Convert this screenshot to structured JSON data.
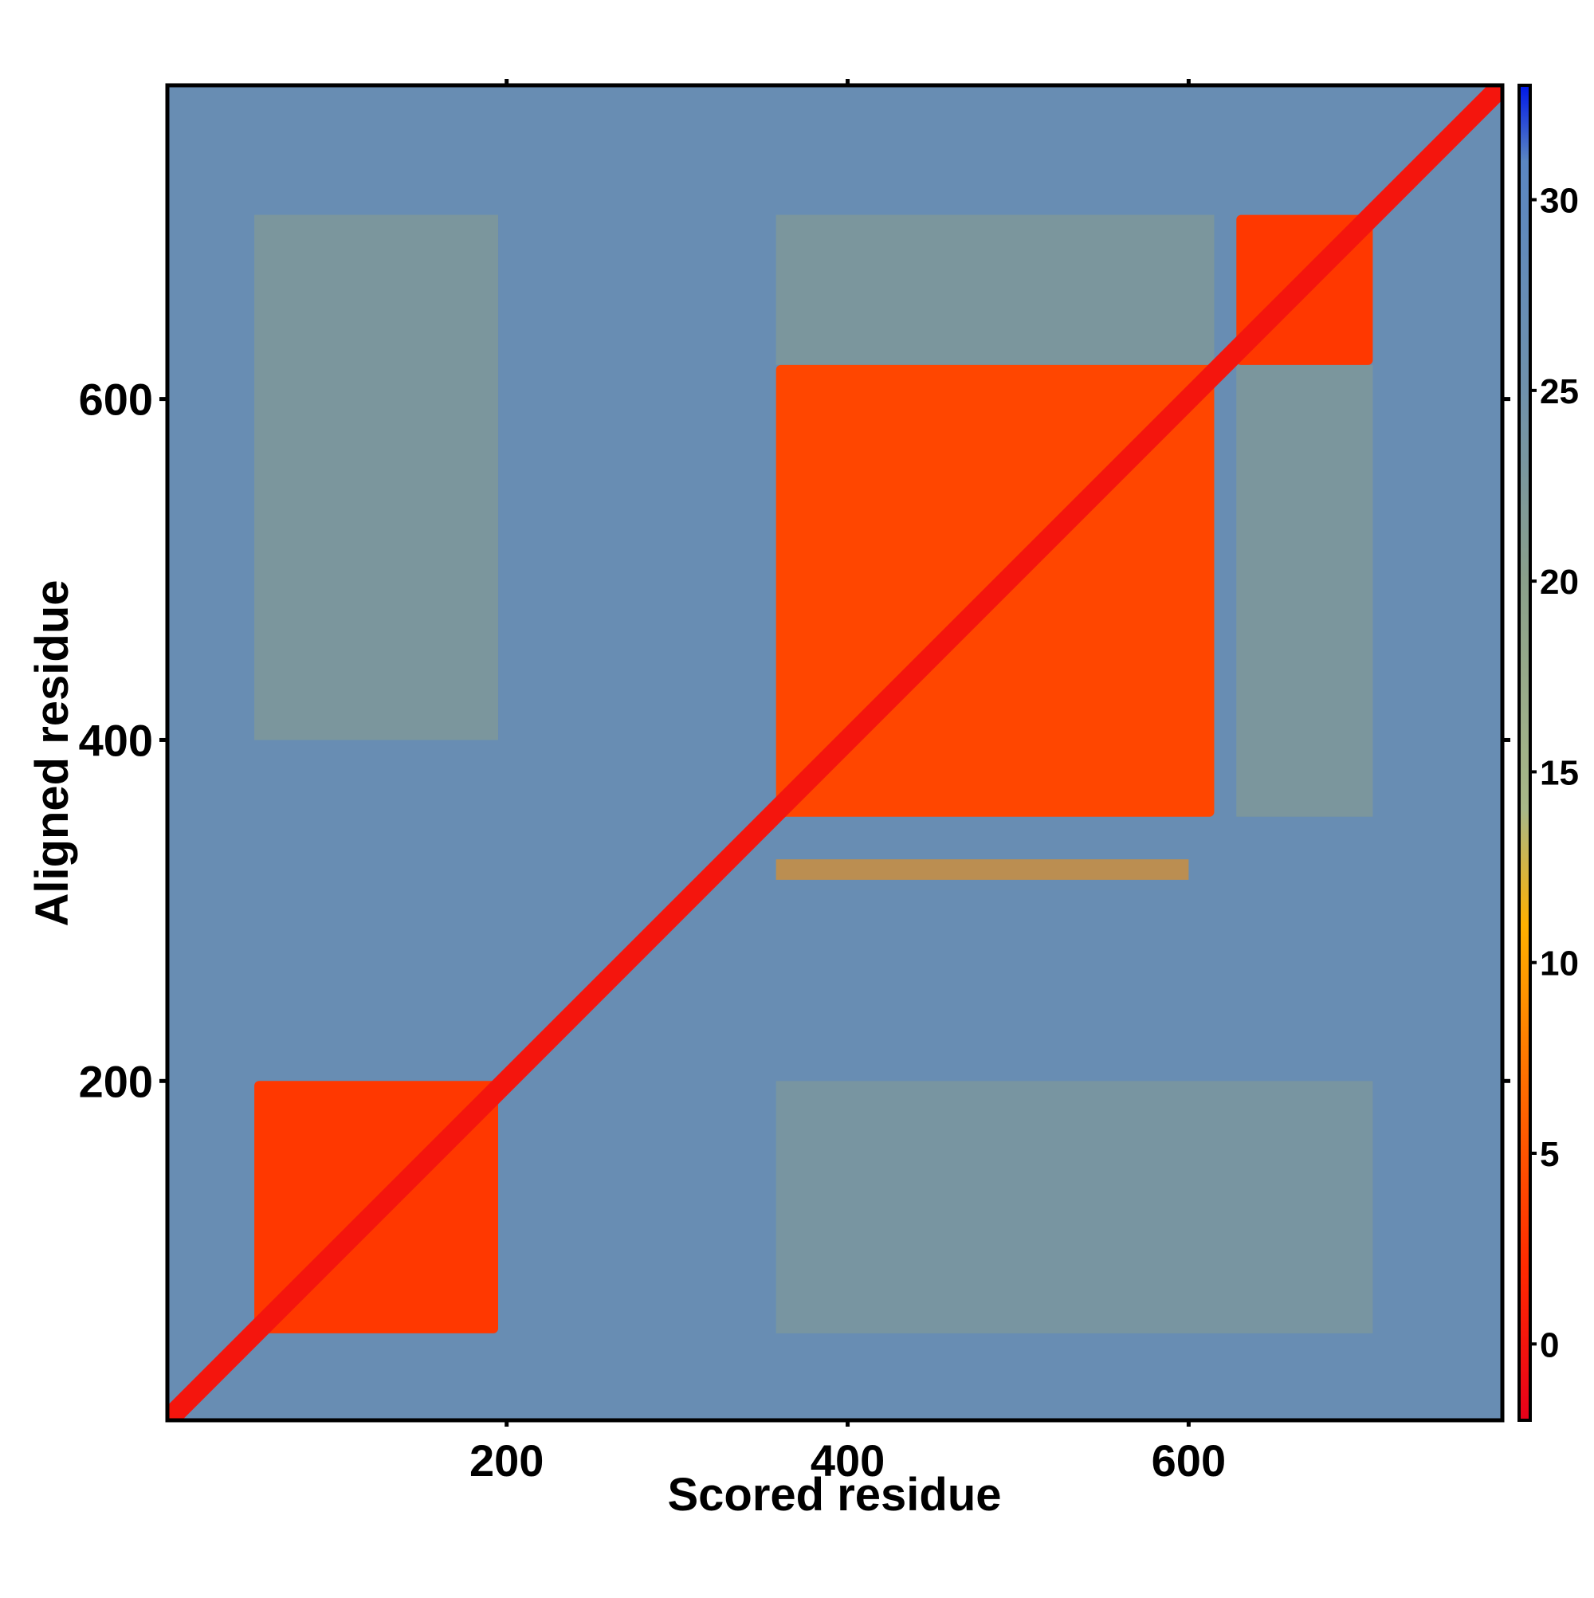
{
  "chart_data": {
    "type": "heatmap",
    "title": "",
    "xlabel": "Scored residue",
    "ylabel": "Aligned residue",
    "xlim": [
      1,
      784
    ],
    "ylim": [
      1,
      784
    ],
    "x_ticks": [
      "200",
      "400",
      "600"
    ],
    "y_ticks": [
      "200",
      "400",
      "600"
    ],
    "colorbar": {
      "range": [
        -2,
        33
      ],
      "ticks": [
        "0",
        "5",
        "10",
        "15",
        "20",
        "25",
        "30"
      ],
      "stops": [
        {
          "value": -2,
          "color": "#e8001a"
        },
        {
          "value": 2,
          "color": "#ff2a00"
        },
        {
          "value": 7,
          "color": "#ff7000"
        },
        {
          "value": 11,
          "color": "#ffb000"
        },
        {
          "value": 14,
          "color": "#a8b888"
        },
        {
          "value": 20,
          "color": "#8a9f8a"
        },
        {
          "value": 25,
          "color": "#6f91ac"
        },
        {
          "value": 31,
          "color": "#5a86c2"
        },
        {
          "value": 33,
          "color": "#0018e8"
        }
      ]
    },
    "background_value": 27,
    "diagonal_value": 0,
    "domain_blocks": [
      {
        "x": [
          52,
          195
        ],
        "y": [
          52,
          200
        ],
        "value": 3
      },
      {
        "x": [
          358,
          615
        ],
        "y": [
          355,
          620
        ],
        "value": 4
      },
      {
        "x": [
          628,
          708
        ],
        "y": [
          620,
          708
        ],
        "value": 3
      }
    ],
    "weak_bands": [
      {
        "x": [
          52,
          195
        ],
        "y": [
          400,
          708
        ],
        "value": 20
      },
      {
        "x": [
          358,
          708
        ],
        "y": [
          52,
          200
        ],
        "value": 21
      },
      {
        "x": [
          628,
          708
        ],
        "y": [
          355,
          620
        ],
        "value": 20
      },
      {
        "x": [
          358,
          615
        ],
        "y": [
          620,
          708
        ],
        "value": 20
      },
      {
        "x": [
          358,
          600
        ],
        "y": [
          318,
          330
        ],
        "value": 9
      }
    ]
  }
}
